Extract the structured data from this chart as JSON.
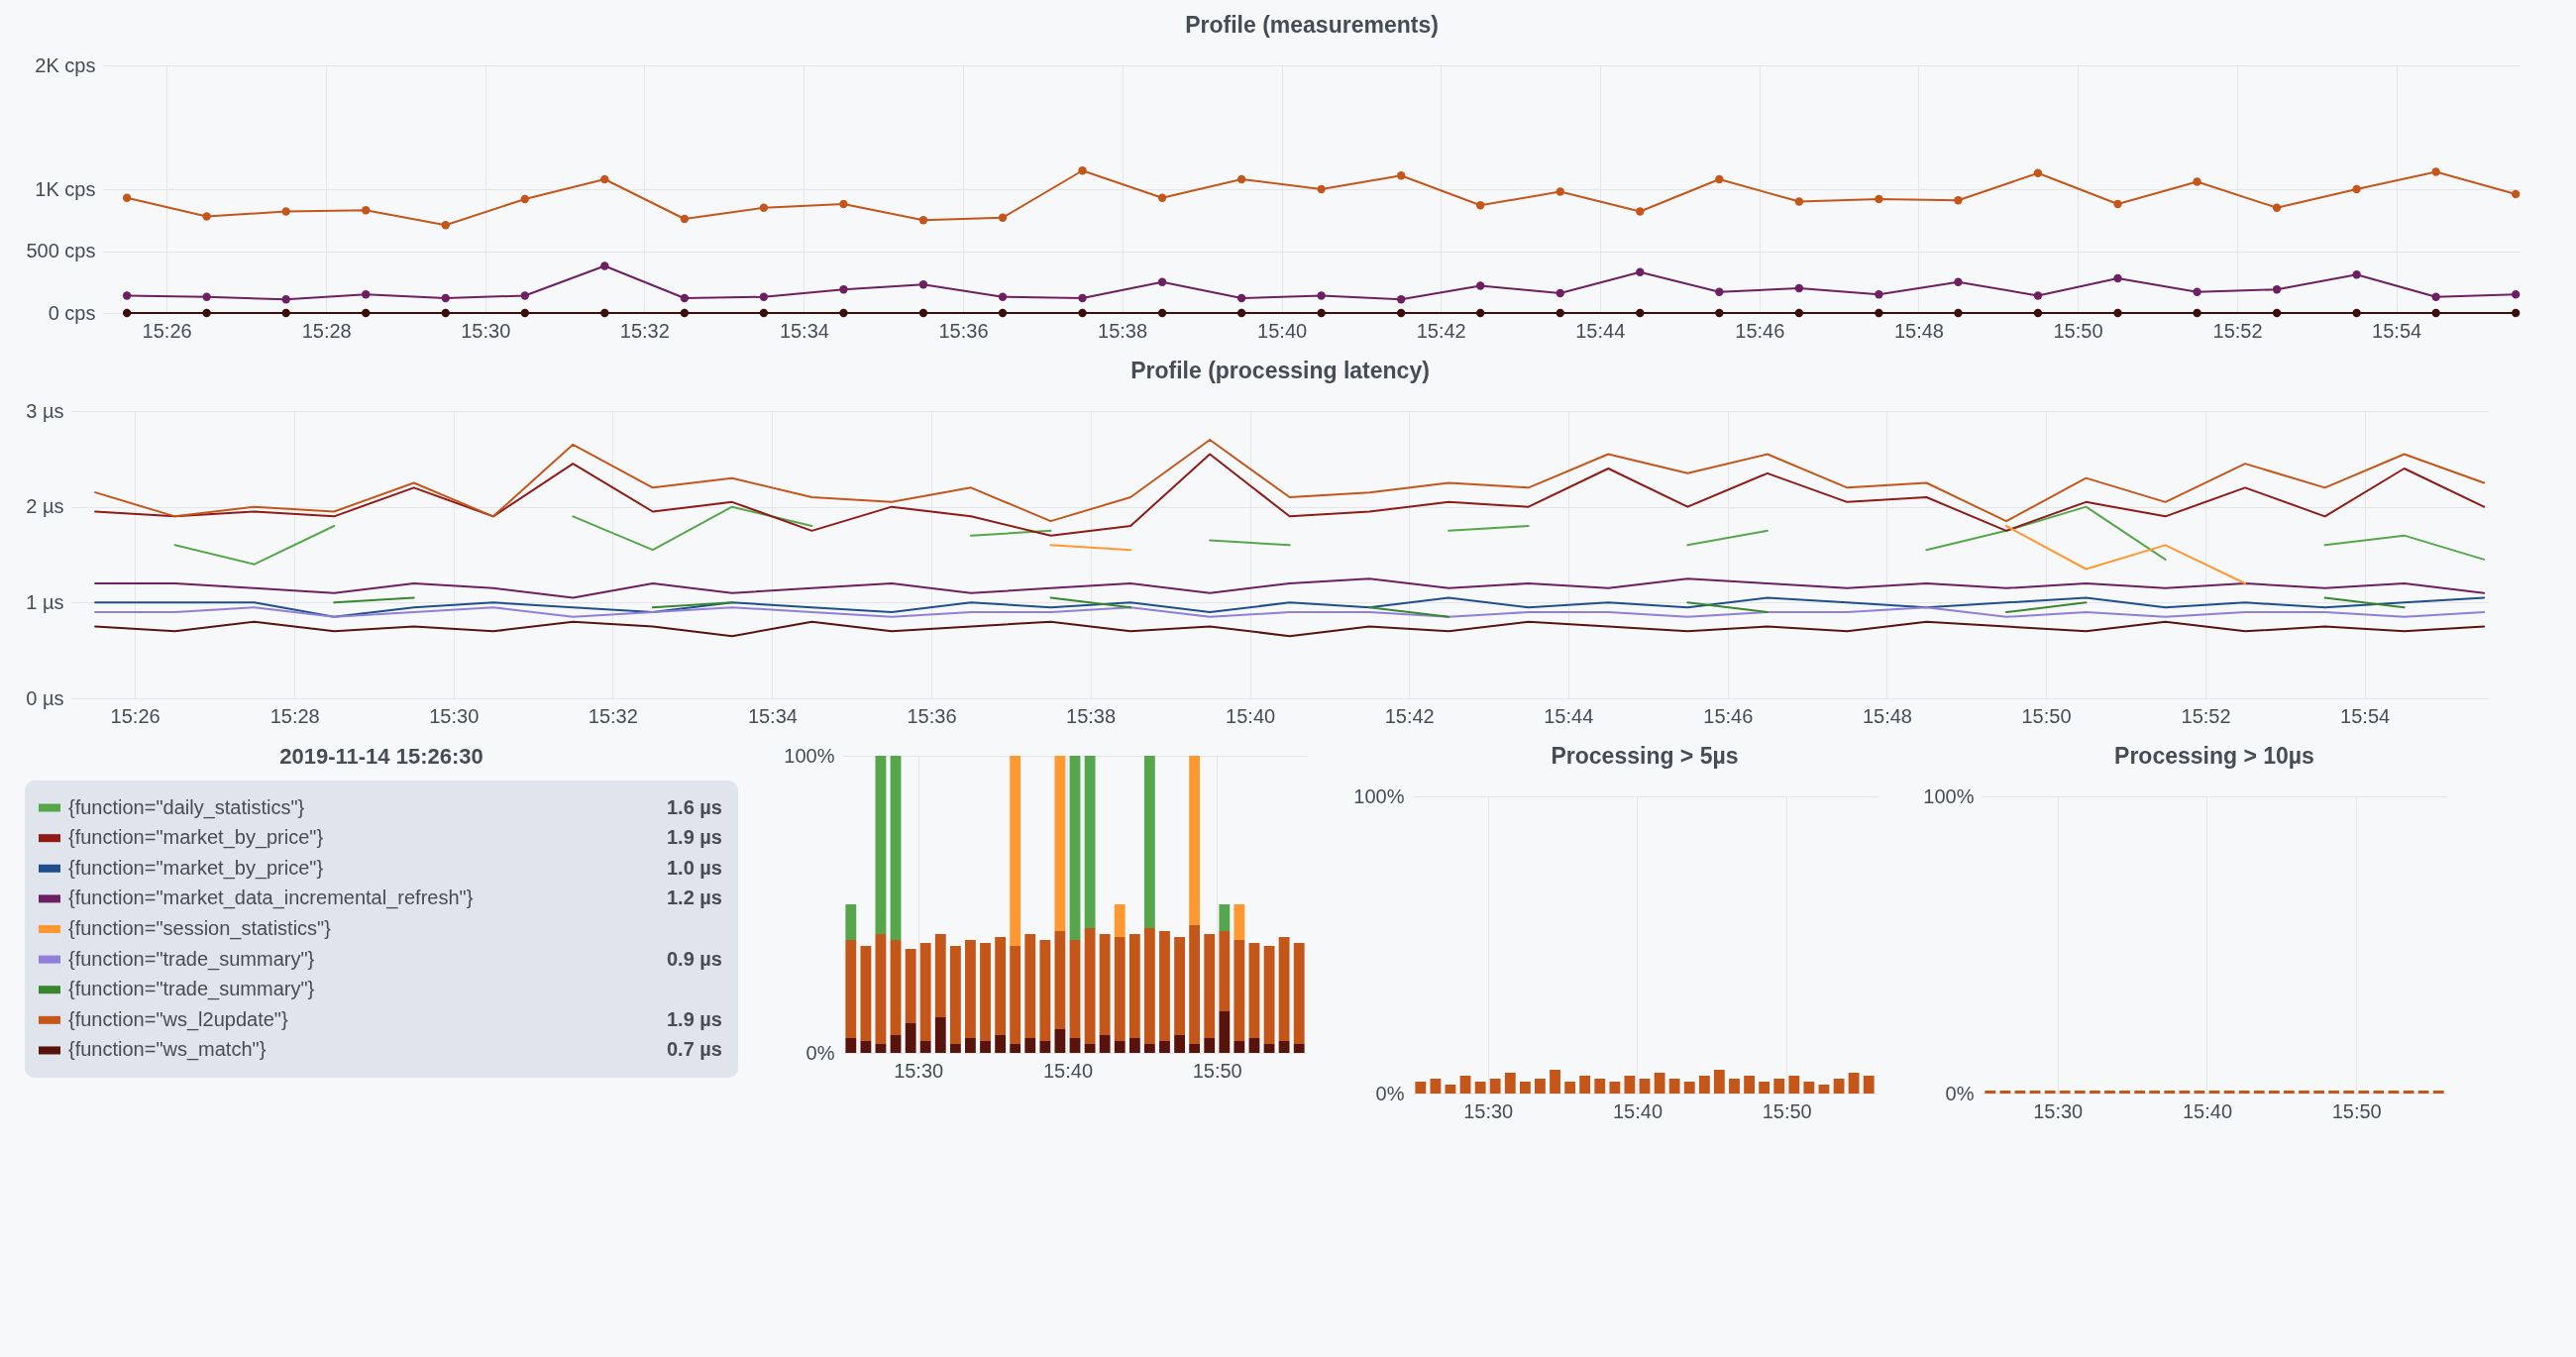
{
  "chart_data": [
    {
      "type": "line",
      "title": "Profile (measurements)",
      "marker": "circle",
      "grid": true,
      "x": [
        15.425,
        15.4417,
        15.4583,
        15.475,
        15.4917,
        15.5083,
        15.525,
        15.5417,
        15.5583,
        15.575,
        15.5917,
        15.6083,
        15.625,
        15.6417,
        15.6583,
        15.675,
        15.6917,
        15.7083,
        15.725,
        15.7417,
        15.7583,
        15.775,
        15.7917,
        15.8083,
        15.825,
        15.8417,
        15.8583,
        15.875,
        15.8917,
        15.9083,
        15.925
      ],
      "xlim": [
        15.42,
        15.926
      ],
      "xticks": [
        {
          "value": 15.4333,
          "label": "15:26"
        },
        {
          "value": 15.4667,
          "label": "15:28"
        },
        {
          "value": 15.5,
          "label": "15:30"
        },
        {
          "value": 15.5333,
          "label": "15:32"
        },
        {
          "value": 15.5667,
          "label": "15:34"
        },
        {
          "value": 15.6,
          "label": "15:36"
        },
        {
          "value": 15.6333,
          "label": "15:38"
        },
        {
          "value": 15.6667,
          "label": "15:40"
        },
        {
          "value": 15.7,
          "label": "15:42"
        },
        {
          "value": 15.7333,
          "label": "15:44"
        },
        {
          "value": 15.7667,
          "label": "15:46"
        },
        {
          "value": 15.8,
          "label": "15:48"
        },
        {
          "value": 15.8333,
          "label": "15:50"
        },
        {
          "value": 15.8667,
          "label": "15:52"
        },
        {
          "value": 15.9,
          "label": "15:54"
        }
      ],
      "ylim": [
        0,
        2000
      ],
      "yticks": [
        {
          "value": 0,
          "label": "0 cps"
        },
        {
          "value": 500,
          "label": "500 cps"
        },
        {
          "value": 1000,
          "label": "1K cps"
        },
        {
          "value": 2000,
          "label": "2K cps"
        }
      ],
      "series": [
        {
          "color": "#c4561a",
          "values": [
            930,
            780,
            820,
            830,
            710,
            920,
            1080,
            760,
            850,
            880,
            750,
            770,
            1150,
            930,
            1080,
            1000,
            1110,
            870,
            980,
            820,
            1080,
            900,
            920,
            910,
            1130,
            880,
            1060,
            850,
            1000,
            1140,
            960
          ]
        },
        {
          "color": "#6d1f62",
          "values": [
            140,
            130,
            110,
            150,
            120,
            140,
            380,
            120,
            130,
            190,
            230,
            130,
            120,
            250,
            120,
            140,
            110,
            220,
            160,
            330,
            170,
            200,
            150,
            250,
            140,
            280,
            170,
            190,
            310,
            130,
            150
          ]
        },
        {
          "color": "#3d0f0b",
          "values": [
            0,
            0,
            0,
            0,
            0,
            0,
            0,
            0,
            0,
            0,
            0,
            0,
            0,
            0,
            0,
            0,
            0,
            0,
            0,
            0,
            0,
            0,
            0,
            0,
            0,
            0,
            0,
            0,
            0,
            0,
            0
          ]
        }
      ]
    },
    {
      "type": "line",
      "title": "Profile (processing latency)",
      "grid": true,
      "x": [
        15.425,
        15.4417,
        15.4583,
        15.475,
        15.4917,
        15.5083,
        15.525,
        15.5417,
        15.5583,
        15.575,
        15.5917,
        15.6083,
        15.625,
        15.6417,
        15.6583,
        15.675,
        15.6917,
        15.7083,
        15.725,
        15.7417,
        15.7583,
        15.775,
        15.7917,
        15.8083,
        15.825,
        15.8417,
        15.8583,
        15.875,
        15.8917,
        15.9083,
        15.925
      ],
      "xlim": [
        15.42,
        15.926
      ],
      "xticks": [
        {
          "value": 15.4333,
          "label": "15:26"
        },
        {
          "value": 15.4667,
          "label": "15:28"
        },
        {
          "value": 15.5,
          "label": "15:30"
        },
        {
          "value": 15.5333,
          "label": "15:32"
        },
        {
          "value": 15.5667,
          "label": "15:34"
        },
        {
          "value": 15.6,
          "label": "15:36"
        },
        {
          "value": 15.6333,
          "label": "15:38"
        },
        {
          "value": 15.6667,
          "label": "15:40"
        },
        {
          "value": 15.7,
          "label": "15:42"
        },
        {
          "value": 15.7333,
          "label": "15:44"
        },
        {
          "value": 15.7667,
          "label": "15:46"
        },
        {
          "value": 15.8,
          "label": "15:48"
        },
        {
          "value": 15.8333,
          "label": "15:50"
        },
        {
          "value": 15.8667,
          "label": "15:52"
        },
        {
          "value": 15.9,
          "label": "15:54"
        }
      ],
      "ylim": [
        0,
        3
      ],
      "yticks": [
        {
          "value": 0,
          "label": "0 µs"
        },
        {
          "value": 1,
          "label": "1 µs"
        },
        {
          "value": 2,
          "label": "2 µs"
        },
        {
          "value": 3,
          "label": "3 µs"
        }
      ],
      "series": [
        {
          "color": "#56a64b",
          "values": [
            null,
            1.6,
            1.4,
            1.8,
            null,
            null,
            1.9,
            1.55,
            2.0,
            1.8,
            null,
            1.7,
            1.75,
            null,
            1.65,
            1.6,
            null,
            1.75,
            1.8,
            null,
            1.6,
            1.75,
            null,
            1.55,
            1.75,
            2.0,
            1.45,
            null,
            1.6,
            1.7,
            1.45
          ]
        },
        {
          "color": "#8f1a16",
          "values": [
            1.95,
            1.9,
            1.95,
            1.9,
            2.2,
            1.9,
            2.45,
            1.95,
            2.05,
            1.75,
            2.0,
            1.9,
            1.7,
            1.8,
            2.55,
            1.9,
            1.95,
            2.05,
            2.0,
            2.4,
            2.0,
            2.35,
            2.05,
            2.1,
            1.75,
            2.05,
            1.9,
            2.2,
            1.9,
            2.4,
            2.0
          ]
        },
        {
          "color": "#1f4e8c",
          "values": [
            1.0,
            1.0,
            1.0,
            0.85,
            0.95,
            1.0,
            0.95,
            0.9,
            1.0,
            0.95,
            0.9,
            1.0,
            0.95,
            1.0,
            0.9,
            1.0,
            0.95,
            1.05,
            0.95,
            1.0,
            0.95,
            1.05,
            1.0,
            0.95,
            1.0,
            1.05,
            0.95,
            1.0,
            0.95,
            1.0,
            1.05
          ]
        },
        {
          "color": "#6d1f62",
          "values": [
            1.2,
            1.2,
            1.15,
            1.1,
            1.2,
            1.15,
            1.05,
            1.2,
            1.1,
            1.15,
            1.2,
            1.1,
            1.15,
            1.2,
            1.1,
            1.2,
            1.25,
            1.15,
            1.2,
            1.15,
            1.25,
            1.2,
            1.15,
            1.2,
            1.15,
            1.2,
            1.15,
            1.2,
            1.15,
            1.2,
            1.1
          ]
        },
        {
          "color": "#ff9830",
          "values": [
            null,
            null,
            null,
            null,
            null,
            null,
            null,
            null,
            null,
            null,
            null,
            null,
            1.6,
            1.55,
            null,
            null,
            null,
            null,
            null,
            null,
            null,
            null,
            null,
            null,
            1.8,
            1.35,
            1.6,
            1.2,
            null,
            null,
            null
          ]
        },
        {
          "color": "#8f7fd8",
          "values": [
            0.9,
            0.9,
            0.95,
            0.85,
            0.9,
            0.95,
            0.85,
            0.9,
            0.95,
            0.9,
            0.85,
            0.9,
            0.9,
            0.95,
            0.85,
            0.9,
            0.9,
            0.85,
            0.9,
            0.9,
            0.85,
            0.9,
            0.9,
            0.95,
            0.85,
            0.9,
            0.85,
            0.9,
            0.9,
            0.85,
            0.9
          ]
        },
        {
          "color": "#37872d",
          "values": [
            null,
            null,
            null,
            1.0,
            1.05,
            null,
            null,
            0.95,
            1.0,
            null,
            null,
            null,
            1.05,
            0.95,
            null,
            null,
            0.95,
            0.85,
            null,
            null,
            1.0,
            0.9,
            null,
            null,
            0.9,
            1.0,
            null,
            null,
            1.05,
            0.95,
            null
          ]
        },
        {
          "color": "#c4561a",
          "values": [
            2.15,
            1.9,
            2.0,
            1.95,
            2.25,
            1.9,
            2.65,
            2.2,
            2.3,
            2.1,
            2.05,
            2.2,
            1.85,
            2.1,
            2.7,
            2.1,
            2.15,
            2.25,
            2.2,
            2.55,
            2.35,
            2.55,
            2.2,
            2.25,
            1.85,
            2.3,
            2.05,
            2.45,
            2.2,
            2.55,
            2.25
          ]
        },
        {
          "color": "#58140c",
          "values": [
            0.75,
            0.7,
            0.8,
            0.7,
            0.75,
            0.7,
            0.8,
            0.75,
            0.65,
            0.8,
            0.7,
            0.75,
            0.8,
            0.7,
            0.75,
            0.65,
            0.75,
            0.7,
            0.8,
            0.75,
            0.7,
            0.75,
            0.7,
            0.8,
            0.75,
            0.7,
            0.8,
            0.7,
            0.75,
            0.7,
            0.75
          ]
        }
      ]
    },
    {
      "type": "other",
      "title": "2019-11-14 15:26:30",
      "categories": [
        "{function=\"daily_statistics\"}",
        "{function=\"market_by_price\"}",
        "{function=\"market_by_price\"}",
        "{function=\"market_data_incremental_refresh\"}",
        "{function=\"session_statistics\"}",
        "{function=\"trade_summary\"}",
        "{function=\"trade_summary\"}",
        "{function=\"ws_l2update\"}",
        "{function=\"ws_match\"}"
      ],
      "colors": [
        "#56a64b",
        "#8f1a16",
        "#1f4e8c",
        "#6d1f62",
        "#ff9830",
        "#8f7fd8",
        "#37872d",
        "#c4561a",
        "#58140c"
      ],
      "value_labels": [
        "1.6 µs",
        "1.9 µs",
        "1.0 µs",
        "1.2 µs",
        null,
        "0.9 µs",
        null,
        "1.9 µs",
        "0.7 µs"
      ]
    },
    {
      "type": "bar",
      "grid": true,
      "stacked": true,
      "x": [
        15.425,
        15.4417,
        15.4583,
        15.475,
        15.4917,
        15.5083,
        15.525,
        15.5417,
        15.5583,
        15.575,
        15.5917,
        15.6083,
        15.625,
        15.6417,
        15.6583,
        15.675,
        15.6917,
        15.7083,
        15.725,
        15.7417,
        15.7583,
        15.775,
        15.7917,
        15.8083,
        15.825,
        15.8417,
        15.8583,
        15.875,
        15.8917,
        15.9083,
        15.925
      ],
      "xlim": [
        15.4208,
        15.9292
      ],
      "xticks": [
        {
          "value": 15.5,
          "label": "15:30"
        },
        {
          "value": 15.6667,
          "label": "15:40"
        },
        {
          "value": 15.8333,
          "label": "15:50"
        }
      ],
      "ylim": [
        0,
        100
      ],
      "yticks": [
        {
          "value": 0,
          "label": "0%"
        },
        {
          "value": 100,
          "label": "100%"
        }
      ],
      "series": [
        {
          "color": "#58140c",
          "values": [
            5,
            4,
            3,
            6,
            10,
            4,
            12,
            3,
            5,
            4,
            6,
            3,
            5,
            4,
            8,
            5,
            3,
            6,
            4,
            5,
            3,
            4,
            6,
            3,
            5,
            14,
            4,
            5,
            3,
            4,
            3
          ]
        },
        {
          "color": "#c4561a",
          "values": [
            33,
            32,
            37,
            32,
            25,
            33,
            28,
            33,
            33,
            33,
            33,
            33,
            35,
            34,
            33,
            33,
            39,
            34,
            35,
            35,
            39,
            37,
            33,
            40,
            35,
            27,
            34,
            32,
            33,
            35,
            34
          ]
        },
        {
          "color": "#ff9830",
          "values": [
            null,
            null,
            null,
            null,
            null,
            null,
            null,
            null,
            null,
            null,
            null,
            64,
            null,
            null,
            59,
            null,
            null,
            null,
            11,
            null,
            null,
            null,
            null,
            57,
            null,
            null,
            12,
            null,
            null,
            null,
            null
          ]
        },
        {
          "color": "#56a64b",
          "values": [
            12,
            null,
            60,
            62,
            null,
            null,
            null,
            null,
            null,
            null,
            null,
            null,
            null,
            null,
            null,
            62,
            58,
            null,
            null,
            null,
            58,
            null,
            null,
            null,
            null,
            9,
            null,
            null,
            null,
            null,
            null
          ]
        }
      ]
    },
    {
      "type": "bar",
      "title": "Processing > 5µs",
      "grid": true,
      "x": [
        15.425,
        15.4417,
        15.4583,
        15.475,
        15.4917,
        15.5083,
        15.525,
        15.5417,
        15.5583,
        15.575,
        15.5917,
        15.6083,
        15.625,
        15.6417,
        15.6583,
        15.675,
        15.6917,
        15.7083,
        15.725,
        15.7417,
        15.7583,
        15.775,
        15.7917,
        15.8083,
        15.825,
        15.8417,
        15.8583,
        15.875,
        15.8917,
        15.9083,
        15.925
      ],
      "xlim": [
        15.4208,
        15.9292
      ],
      "xticks": [
        {
          "value": 15.5,
          "label": "15:30"
        },
        {
          "value": 15.6667,
          "label": "15:40"
        },
        {
          "value": 15.8333,
          "label": "15:50"
        }
      ],
      "ylim": [
        0,
        100
      ],
      "yticks": [
        {
          "value": 0,
          "label": "0%"
        },
        {
          "value": 100,
          "label": "100%"
        }
      ],
      "series": [
        {
          "color": "#c4561a",
          "values": [
            4,
            5,
            3,
            6,
            4,
            5,
            7,
            4,
            5,
            8,
            4,
            6,
            5,
            4,
            6,
            5,
            7,
            5,
            4,
            6,
            8,
            5,
            6,
            4,
            5,
            6,
            4,
            3,
            5,
            7,
            6
          ]
        }
      ]
    },
    {
      "type": "bar",
      "title": "Processing > 10µs",
      "grid": true,
      "x": [
        15.425,
        15.4417,
        15.4583,
        15.475,
        15.4917,
        15.5083,
        15.525,
        15.5417,
        15.5583,
        15.575,
        15.5917,
        15.6083,
        15.625,
        15.6417,
        15.6583,
        15.675,
        15.6917,
        15.7083,
        15.725,
        15.7417,
        15.7583,
        15.775,
        15.7917,
        15.8083,
        15.825,
        15.8417,
        15.8583,
        15.875,
        15.8917,
        15.9083,
        15.925
      ],
      "xlim": [
        15.4208,
        15.9292
      ],
      "xticks": [
        {
          "value": 15.5,
          "label": "15:30"
        },
        {
          "value": 15.6667,
          "label": "15:40"
        },
        {
          "value": 15.8333,
          "label": "15:50"
        }
      ],
      "ylim": [
        0,
        100
      ],
      "yticks": [
        {
          "value": 0,
          "label": "0%"
        },
        {
          "value": 100,
          "label": "100%"
        }
      ],
      "series": [
        {
          "color": "#c4561a",
          "values": [
            1,
            1,
            1,
            1,
            1,
            1,
            1,
            1,
            1,
            1,
            1,
            1,
            1,
            1,
            1,
            1,
            1,
            1,
            1,
            1,
            1,
            1,
            1,
            1,
            1,
            1,
            1,
            1,
            1,
            1,
            1
          ]
        }
      ]
    }
  ]
}
